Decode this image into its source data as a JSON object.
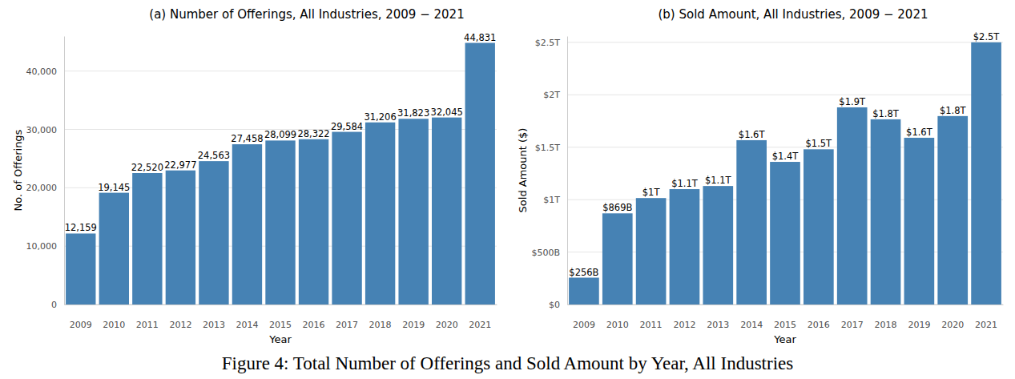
{
  "chart_data": [
    {
      "type": "bar",
      "title": "(a) Number of Offerings, All Industries, 2009 − 2021",
      "x_label": "Year",
      "y_label": "No. of Offerings",
      "categories": [
        "2009",
        "2010",
        "2011",
        "2012",
        "2013",
        "2014",
        "2015",
        "2016",
        "2017",
        "2018",
        "2019",
        "2020",
        "2021"
      ],
      "values": [
        12159,
        19145,
        22520,
        22977,
        24563,
        27458,
        28099,
        28322,
        29584,
        31206,
        31823,
        32045,
        44831
      ],
      "value_labels": [
        "12,159",
        "19,145",
        "22,520",
        "22,977",
        "24,563",
        "27,458",
        "28,099",
        "28,322",
        "29,584",
        "31,206",
        "31,823",
        "32,045",
        "44,831"
      ],
      "color": "#4682b4",
      "ylim": [
        0,
        46000
      ],
      "yticks": [
        0,
        {
          "value": 10000,
          "label": "10,000"
        },
        {
          "value": 20000,
          "label": "20,000"
        },
        {
          "value": 30000,
          "label": "30,000"
        },
        {
          "value": 40000,
          "label": "40,000"
        }
      ],
      "grid": true,
      "data_labels": true
    },
    {
      "type": "bar",
      "title": "(b) Sold Amount, All Industries, 2009 − 2021",
      "x_label": "Year",
      "y_label": "Sold Amount ($)",
      "categories": [
        "2009",
        "2010",
        "2011",
        "2012",
        "2013",
        "2014",
        "2015",
        "2016",
        "2017",
        "2018",
        "2019",
        "2020",
        "2021"
      ],
      "values": [
        256000000000,
        869000000000,
        1015000000000,
        1100000000000,
        1130000000000,
        1567000000000,
        1360000000000,
        1480000000000,
        1880000000000,
        1766000000000,
        1590000000000,
        1797000000000,
        2500000000000
      ],
      "value_labels": [
        "$256B",
        "$869B",
        "$1T",
        "$1.1T",
        "$1.1T",
        "$1.6T",
        "$1.4T",
        "$1.5T",
        "$1.9T",
        "$1.8T",
        "$1.6T",
        "$1.8T",
        "$2.5T"
      ],
      "color": "#4682b4",
      "ylim": [
        0,
        2560000000000
      ],
      "yticks": [
        {
          "value": 0,
          "label": "$0"
        },
        {
          "value": 500000000000,
          "label": "$500B"
        },
        {
          "value": 1000000000000,
          "label": "$1T"
        },
        {
          "value": 1500000000000,
          "label": "$1.5T"
        },
        {
          "value": 2000000000000,
          "label": "$2T"
        },
        {
          "value": 2500000000000,
          "label": "$2.5T"
        }
      ],
      "grid": true,
      "data_labels": true
    }
  ],
  "caption": "Figure 4: Total Number of Offerings and Sold Amount by Year, All Industries"
}
